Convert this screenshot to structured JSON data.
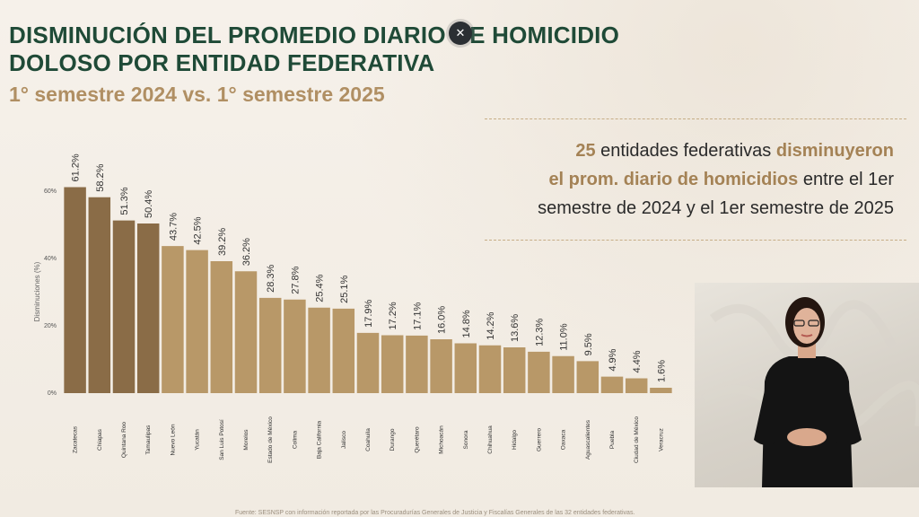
{
  "header": {
    "title_line1": "DISMINUCIÓN DEL PROMEDIO DIARIO DE HOMICIDIO",
    "title_line2": "DOLOSO POR ENTIDAD FEDERATIVA",
    "subtitle": "1° semestre 2024 vs. 1° semestre 2025"
  },
  "callout": {
    "count": "25",
    "part1": " entidades federativas ",
    "highlight1": "disminuyeron",
    "highlight2": "el prom. diario de homicidios",
    "part2": " entre el 1er semestre de 2024 y el 1er semestre de 2025"
  },
  "overlay": {
    "close_icon": "close-icon"
  },
  "footer": {
    "source": "Fuente: SESNSP con información reportada por las Procuradurías Generales de Justicia y Fiscalías Generales de las 32 entidades federativas."
  },
  "colors": {
    "bar_dark": "#8a6c47",
    "bar_light": "#b89868",
    "title": "#1f4a37",
    "accent": "#a48255"
  },
  "chart_data": {
    "type": "bar",
    "title": "",
    "xlabel": "",
    "ylabel": "Disminuciones (%)",
    "ylim": [
      0,
      60
    ],
    "yticks": [
      0,
      20,
      40,
      60
    ],
    "ytick_labels": [
      "0%",
      "20%",
      "40%",
      "60%"
    ],
    "categories": [
      "Zacatecas",
      "Chiapas",
      "Quintana Roo",
      "Tamaulipas",
      "Nuevo León",
      "Yucatán",
      "San Luis Potosí",
      "Morelos",
      "Estado de México",
      "Colima",
      "Baja California",
      "Jalisco",
      "Coahuila",
      "Durango",
      "Querétaro",
      "Michoacán",
      "Sonora",
      "Chihuahua",
      "Hidalgo",
      "Guerrero",
      "Oaxaca",
      "Aguascalientes",
      "Puebla",
      "Ciudad de México",
      "Veracruz"
    ],
    "values": [
      61.2,
      58.2,
      51.3,
      50.4,
      43.7,
      42.5,
      39.2,
      36.2,
      28.3,
      27.8,
      25.4,
      25.1,
      17.9,
      17.2,
      17.1,
      16.0,
      14.8,
      14.2,
      13.6,
      12.3,
      11.0,
      9.5,
      4.9,
      4.4,
      1.6
    ],
    "value_labels": [
      "61.2%",
      "58.2%",
      "51.3%",
      "50.4%",
      "43.7%",
      "42.5%",
      "39.2%",
      "36.2%",
      "28.3%",
      "27.8%",
      "25.4%",
      "25.1%",
      "17.9%",
      "17.2%",
      "17.1%",
      "16.0%",
      "14.8%",
      "14.2%",
      "13.6%",
      "12.3%",
      "11.0%",
      "9.5%",
      "4.9%",
      "4.4%",
      "1.6%"
    ],
    "grid": false,
    "legend": "none"
  }
}
